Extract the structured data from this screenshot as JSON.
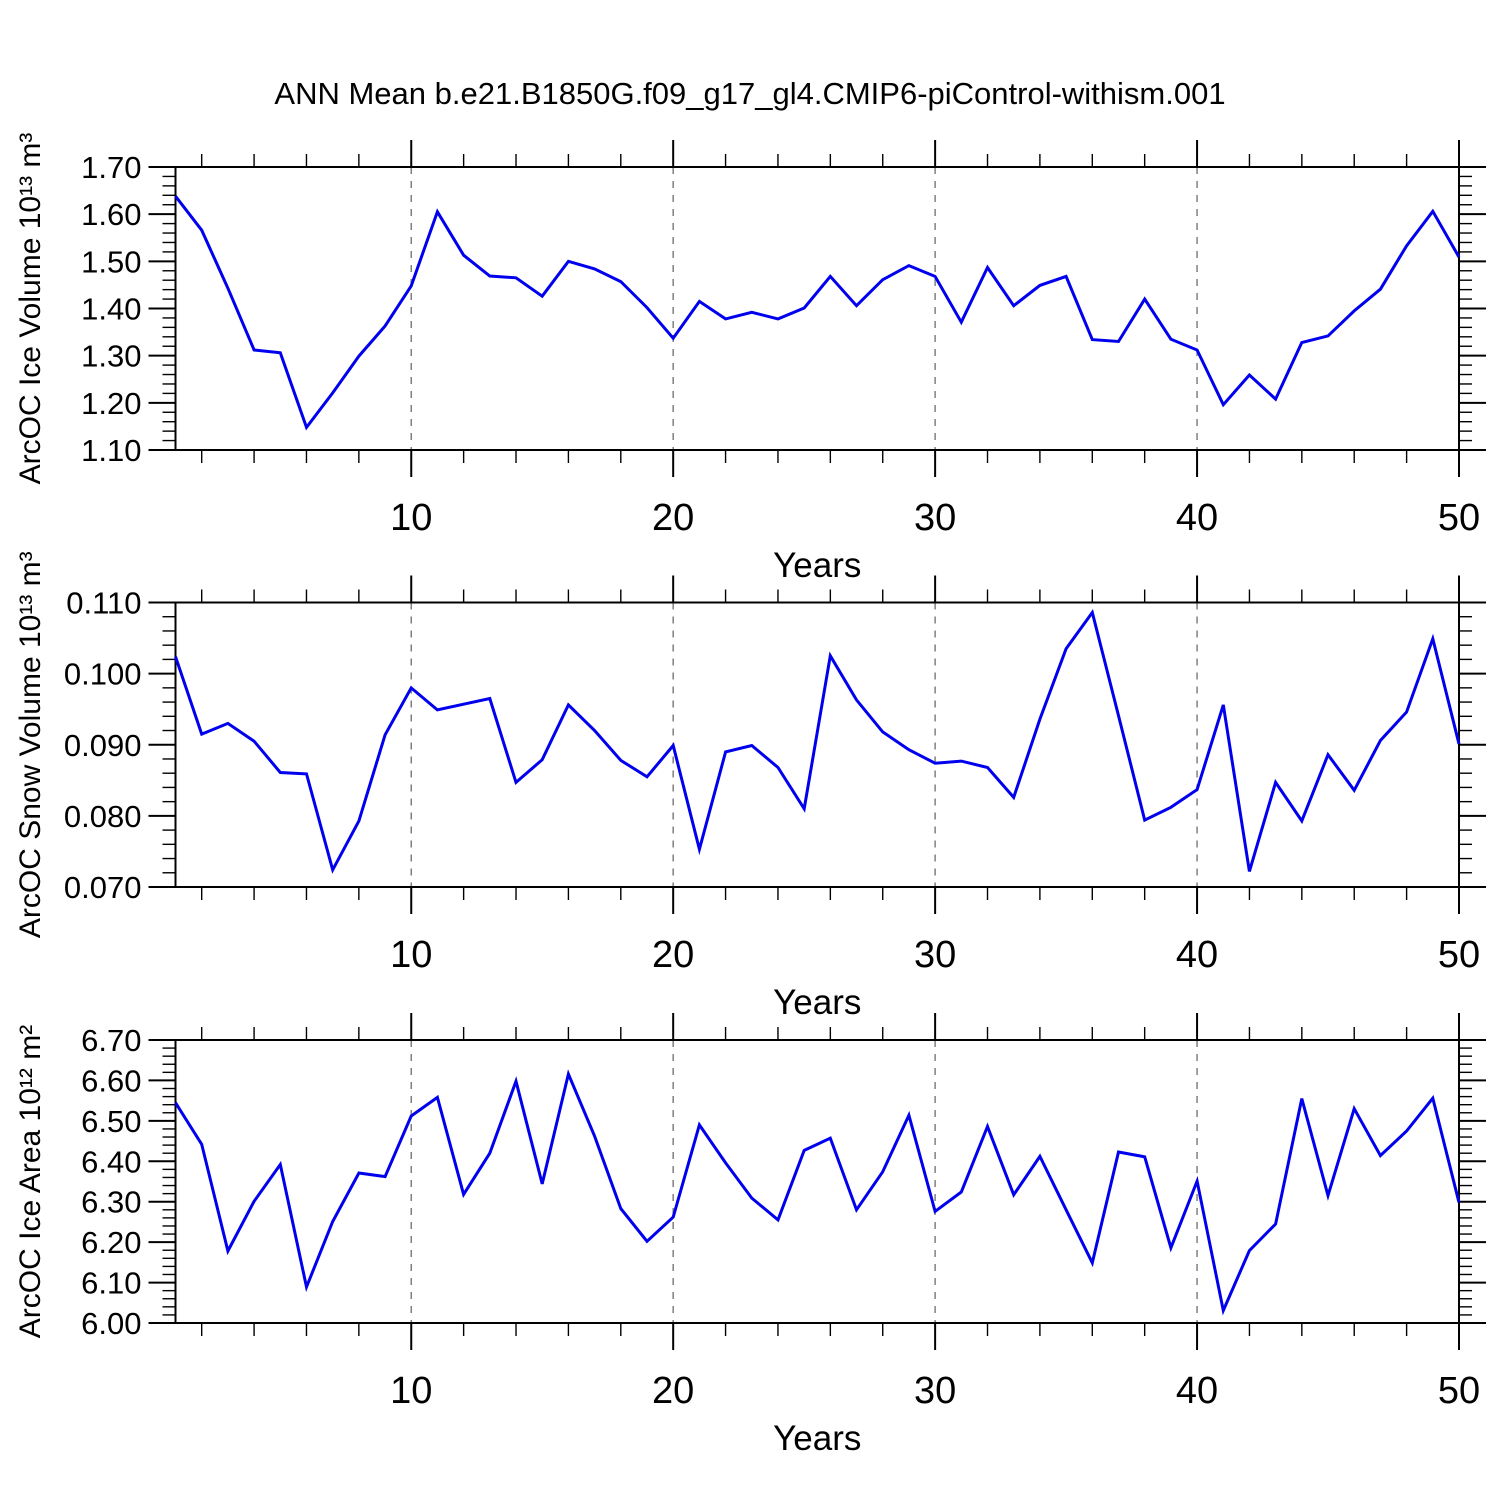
{
  "title": "ANN Mean b.e21.B1850G.f09_g17_gl4.CMIP6-piControl-withism.001",
  "line_color": "#0000ee",
  "grid_color": "#808080",
  "x_axis": {
    "label": "Years",
    "range": [
      1,
      50
    ],
    "major_ticks": [
      10,
      20,
      30,
      40,
      50
    ],
    "tick_labels": [
      "10",
      "20",
      "30",
      "40",
      "50"
    ],
    "minor_step": 2,
    "gridlines_at": [
      10,
      20,
      30,
      40
    ]
  },
  "chart_data": [
    {
      "type": "line",
      "id": "ice-volume",
      "ylabel": "ArcOC Ice Volume 10¹³ m³",
      "xlabel": "Years",
      "ylim": [
        1.1,
        1.7
      ],
      "ytick_step": 0.1,
      "yminor_step": 0.02,
      "ytick_labels": [
        "1.10",
        "1.20",
        "1.30",
        "1.40",
        "1.50",
        "1.60",
        "1.70"
      ],
      "grid": "vertical-dashed",
      "legend": "none",
      "x_start": 1,
      "x_step": 1,
      "values": [
        1.638,
        1.566,
        1.443,
        1.312,
        1.306,
        1.148,
        1.221,
        1.299,
        1.363,
        1.448,
        1.605,
        1.513,
        1.469,
        1.465,
        1.426,
        1.5,
        1.484,
        1.457,
        1.402,
        1.337,
        1.415,
        1.378,
        1.392,
        1.378,
        1.401,
        1.468,
        1.406,
        1.461,
        1.491,
        1.468,
        1.371,
        1.487,
        1.406,
        1.449,
        1.468,
        1.334,
        1.33,
        1.42,
        1.335,
        1.312,
        1.196,
        1.259,
        1.208,
        1.328,
        1.342,
        1.395,
        1.441,
        1.533,
        1.606,
        1.509
      ]
    },
    {
      "type": "line",
      "id": "snow-volume",
      "ylabel": "ArcOC Snow Volume 10¹³ m³",
      "xlabel": "Years",
      "ylim": [
        0.07,
        0.11
      ],
      "ytick_step": 0.01,
      "yminor_step": 0.002,
      "ytick_labels": [
        "0.070",
        "0.080",
        "0.090",
        "0.100",
        "0.110"
      ],
      "grid": "vertical-dashed",
      "legend": "none",
      "x_start": 1,
      "x_step": 1,
      "values": [
        0.1024,
        0.0915,
        0.093,
        0.0905,
        0.0861,
        0.0859,
        0.0724,
        0.0793,
        0.0914,
        0.098,
        0.0949,
        0.0957,
        0.0965,
        0.0847,
        0.0879,
        0.0956,
        0.092,
        0.0878,
        0.0855,
        0.0899,
        0.0753,
        0.089,
        0.0899,
        0.0868,
        0.081,
        0.1025,
        0.0963,
        0.0918,
        0.0893,
        0.0874,
        0.0877,
        0.0868,
        0.0826,
        0.0936,
        0.1035,
        0.1086,
        0.0941,
        0.0794,
        0.0812,
        0.0837,
        0.0956,
        0.0722,
        0.0847,
        0.0793,
        0.0886,
        0.0836,
        0.0906,
        0.0946,
        0.1049,
        0.0901
      ]
    },
    {
      "type": "line",
      "id": "ice-area",
      "ylabel": "ArcOC Ice Area 10¹² m²",
      "xlabel": "Years",
      "ylim": [
        6.0,
        6.7
      ],
      "ytick_step": 0.1,
      "yminor_step": 0.02,
      "ytick_labels": [
        "6.00",
        "6.10",
        "6.20",
        "6.30",
        "6.40",
        "6.50",
        "6.60",
        "6.70"
      ],
      "grid": "vertical-dashed",
      "legend": "none",
      "x_start": 1,
      "x_step": 1,
      "values": [
        6.545,
        6.442,
        6.178,
        6.301,
        6.392,
        6.089,
        6.251,
        6.371,
        6.362,
        6.512,
        6.558,
        6.318,
        6.42,
        6.598,
        6.344,
        6.616,
        6.462,
        6.283,
        6.202,
        6.262,
        6.49,
        6.396,
        6.309,
        6.255,
        6.427,
        6.457,
        6.28,
        6.374,
        6.514,
        6.276,
        6.324,
        6.486,
        6.317,
        6.412,
        6.28,
        6.149,
        6.423,
        6.411,
        6.186,
        6.351,
        6.031,
        6.179,
        6.245,
        6.555,
        6.315,
        6.53,
        6.414,
        6.475,
        6.556,
        6.298
      ]
    }
  ]
}
